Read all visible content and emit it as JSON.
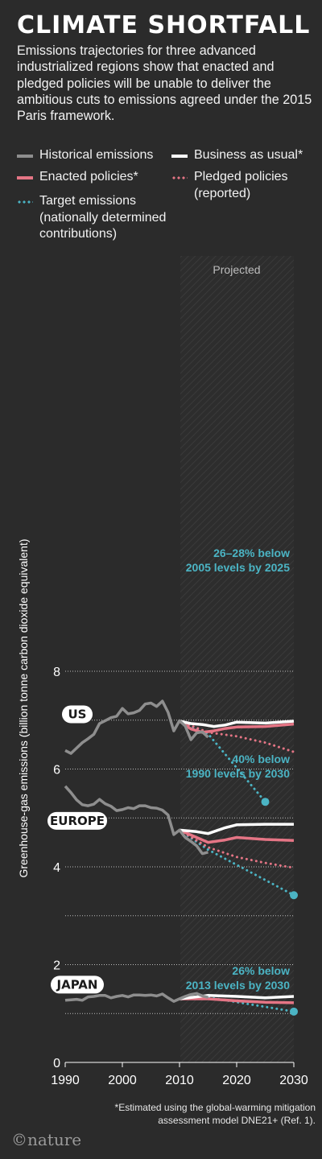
{
  "title": "CLIMATE SHORTFALL",
  "subtitle": "Emissions trajectories for three advanced industrialized regions show that enacted and pledged policies will be unable to deliver the ambitious cuts to emissions agreed under the 2015 Paris framework.",
  "legend": {
    "historical": "Historical emissions",
    "bau": "Business as usual*",
    "enacted": "Enacted policies*",
    "pledged": [
      "Pledged policies",
      "(reported)"
    ],
    "target": [
      "Target emissions",
      "(nationally determined",
      "contributions)"
    ]
  },
  "footnote": [
    "*Estimated using the global-warming mitigation",
    "assessment model DNE21+ (Ref. 1)."
  ],
  "brand": "©nature",
  "colors": {
    "background": "#2b2b2b",
    "historical": "#8e8e8e",
    "bau": "#ffffff",
    "enacted": "#e57585",
    "pledged": "#e57585",
    "target": "#4bb4c4"
  },
  "chart_data": {
    "type": "line",
    "ylabel": "Greenhouse-gas emissions (billion tonne carbon dioxide equivalent)",
    "xlabel": "",
    "xlim": [
      1990,
      2030
    ],
    "ylim": [
      0,
      8.4
    ],
    "x_ticks": [
      "1990",
      "2000",
      "2010",
      "2020",
      "2030"
    ],
    "y_ticks": [
      "0",
      "2",
      "4",
      "6",
      "8"
    ],
    "grid": "horizontal dotted",
    "projected_region": {
      "from": 2010,
      "to": 2030,
      "label": "Projected"
    },
    "regions": [
      {
        "name": "US",
        "historical": [
          [
            1990,
            6.38
          ],
          [
            1991,
            6.32
          ],
          [
            1992,
            6.43
          ],
          [
            1993,
            6.54
          ],
          [
            1994,
            6.62
          ],
          [
            1995,
            6.71
          ],
          [
            1996,
            6.93
          ],
          [
            1997,
            6.99
          ],
          [
            1998,
            7.05
          ],
          [
            1999,
            7.08
          ],
          [
            2000,
            7.24
          ],
          [
            2001,
            7.13
          ],
          [
            2002,
            7.15
          ],
          [
            2003,
            7.2
          ],
          [
            2004,
            7.33
          ],
          [
            2005,
            7.35
          ],
          [
            2006,
            7.28
          ],
          [
            2007,
            7.39
          ],
          [
            2008,
            7.16
          ],
          [
            2009,
            6.78
          ],
          [
            2010,
            6.99
          ],
          [
            2011,
            6.88
          ],
          [
            2012,
            6.6
          ],
          [
            2013,
            6.74
          ],
          [
            2014,
            6.76
          ],
          [
            2015,
            6.65
          ]
        ],
        "business_as_usual": [
          [
            2010,
            6.98
          ],
          [
            2012,
            6.93
          ],
          [
            2014,
            6.91
          ],
          [
            2016,
            6.87
          ],
          [
            2018,
            6.9
          ],
          [
            2020,
            6.96
          ],
          [
            2025,
            6.94
          ],
          [
            2030,
            6.98
          ]
        ],
        "enacted": [
          [
            2010,
            6.98
          ],
          [
            2012,
            6.82
          ],
          [
            2014,
            6.75
          ],
          [
            2016,
            6.78
          ],
          [
            2018,
            6.83
          ],
          [
            2020,
            6.86
          ],
          [
            2025,
            6.87
          ],
          [
            2030,
            6.92
          ]
        ],
        "pledged": [
          [
            2010,
            6.98
          ],
          [
            2015,
            6.75
          ],
          [
            2020,
            6.67
          ],
          [
            2025,
            6.54
          ],
          [
            2030,
            6.35
          ]
        ],
        "target": [
          [
            2010,
            6.98
          ],
          [
            2015,
            6.72
          ],
          [
            2025,
            5.33
          ]
        ],
        "target_label": [
          "26–28% below",
          "2005 levels by 2025"
        ]
      },
      {
        "name": "EUROPE",
        "historical": [
          [
            1990,
            5.65
          ],
          [
            1991,
            5.52
          ],
          [
            1992,
            5.37
          ],
          [
            1993,
            5.27
          ],
          [
            1994,
            5.25
          ],
          [
            1995,
            5.28
          ],
          [
            1996,
            5.38
          ],
          [
            1997,
            5.29
          ],
          [
            1998,
            5.24
          ],
          [
            1999,
            5.15
          ],
          [
            2000,
            5.17
          ],
          [
            2001,
            5.21
          ],
          [
            2002,
            5.19
          ],
          [
            2003,
            5.25
          ],
          [
            2004,
            5.25
          ],
          [
            2005,
            5.21
          ],
          [
            2006,
            5.2
          ],
          [
            2007,
            5.16
          ],
          [
            2008,
            5.06
          ],
          [
            2009,
            4.66
          ],
          [
            2010,
            4.75
          ],
          [
            2011,
            4.6
          ],
          [
            2012,
            4.52
          ],
          [
            2013,
            4.43
          ],
          [
            2014,
            4.27
          ],
          [
            2015,
            4.3
          ]
        ],
        "business_as_usual": [
          [
            2010,
            4.75
          ],
          [
            2013,
            4.72
          ],
          [
            2015,
            4.68
          ],
          [
            2018,
            4.8
          ],
          [
            2020,
            4.86
          ],
          [
            2025,
            4.87
          ],
          [
            2030,
            4.87
          ]
        ],
        "enacted": [
          [
            2010,
            4.75
          ],
          [
            2013,
            4.6
          ],
          [
            2015,
            4.5
          ],
          [
            2018,
            4.55
          ],
          [
            2020,
            4.6
          ],
          [
            2025,
            4.56
          ],
          [
            2030,
            4.54
          ]
        ],
        "pledged": [
          [
            2010,
            4.75
          ],
          [
            2015,
            4.4
          ],
          [
            2020,
            4.2
          ],
          [
            2025,
            4.08
          ],
          [
            2030,
            3.98
          ]
        ],
        "target": [
          [
            2010,
            4.75
          ],
          [
            2015,
            4.35
          ],
          [
            2030,
            3.42
          ]
        ],
        "target_label": [
          "40% below",
          "1990 levels by 2030"
        ]
      },
      {
        "name": "JAPAN",
        "historical": [
          [
            1990,
            1.27
          ],
          [
            1991,
            1.28
          ],
          [
            1992,
            1.29
          ],
          [
            1993,
            1.27
          ],
          [
            1994,
            1.34
          ],
          [
            1995,
            1.35
          ],
          [
            1996,
            1.37
          ],
          [
            1997,
            1.37
          ],
          [
            1998,
            1.32
          ],
          [
            1999,
            1.35
          ],
          [
            2000,
            1.37
          ],
          [
            2001,
            1.34
          ],
          [
            2002,
            1.38
          ],
          [
            2003,
            1.38
          ],
          [
            2004,
            1.37
          ],
          [
            2005,
            1.38
          ],
          [
            2006,
            1.36
          ],
          [
            2007,
            1.4
          ],
          [
            2008,
            1.32
          ],
          [
            2009,
            1.25
          ],
          [
            2010,
            1.3
          ],
          [
            2011,
            1.35
          ],
          [
            2012,
            1.39
          ],
          [
            2013,
            1.41
          ],
          [
            2014,
            1.36
          ],
          [
            2015,
            1.33
          ]
        ],
        "business_as_usual": [
          [
            2010,
            1.3
          ],
          [
            2015,
            1.37
          ],
          [
            2020,
            1.35
          ],
          [
            2025,
            1.32
          ],
          [
            2030,
            1.35
          ]
        ],
        "enacted": [
          [
            2010,
            1.3
          ],
          [
            2015,
            1.3
          ],
          [
            2020,
            1.26
          ],
          [
            2025,
            1.23
          ],
          [
            2030,
            1.22
          ]
        ],
        "pledged": [],
        "target": [
          [
            2010,
            1.3
          ],
          [
            2015,
            1.33
          ],
          [
            2030,
            1.04
          ]
        ],
        "target_label": [
          "26% below",
          "2013 levels by 2030"
        ]
      }
    ]
  }
}
